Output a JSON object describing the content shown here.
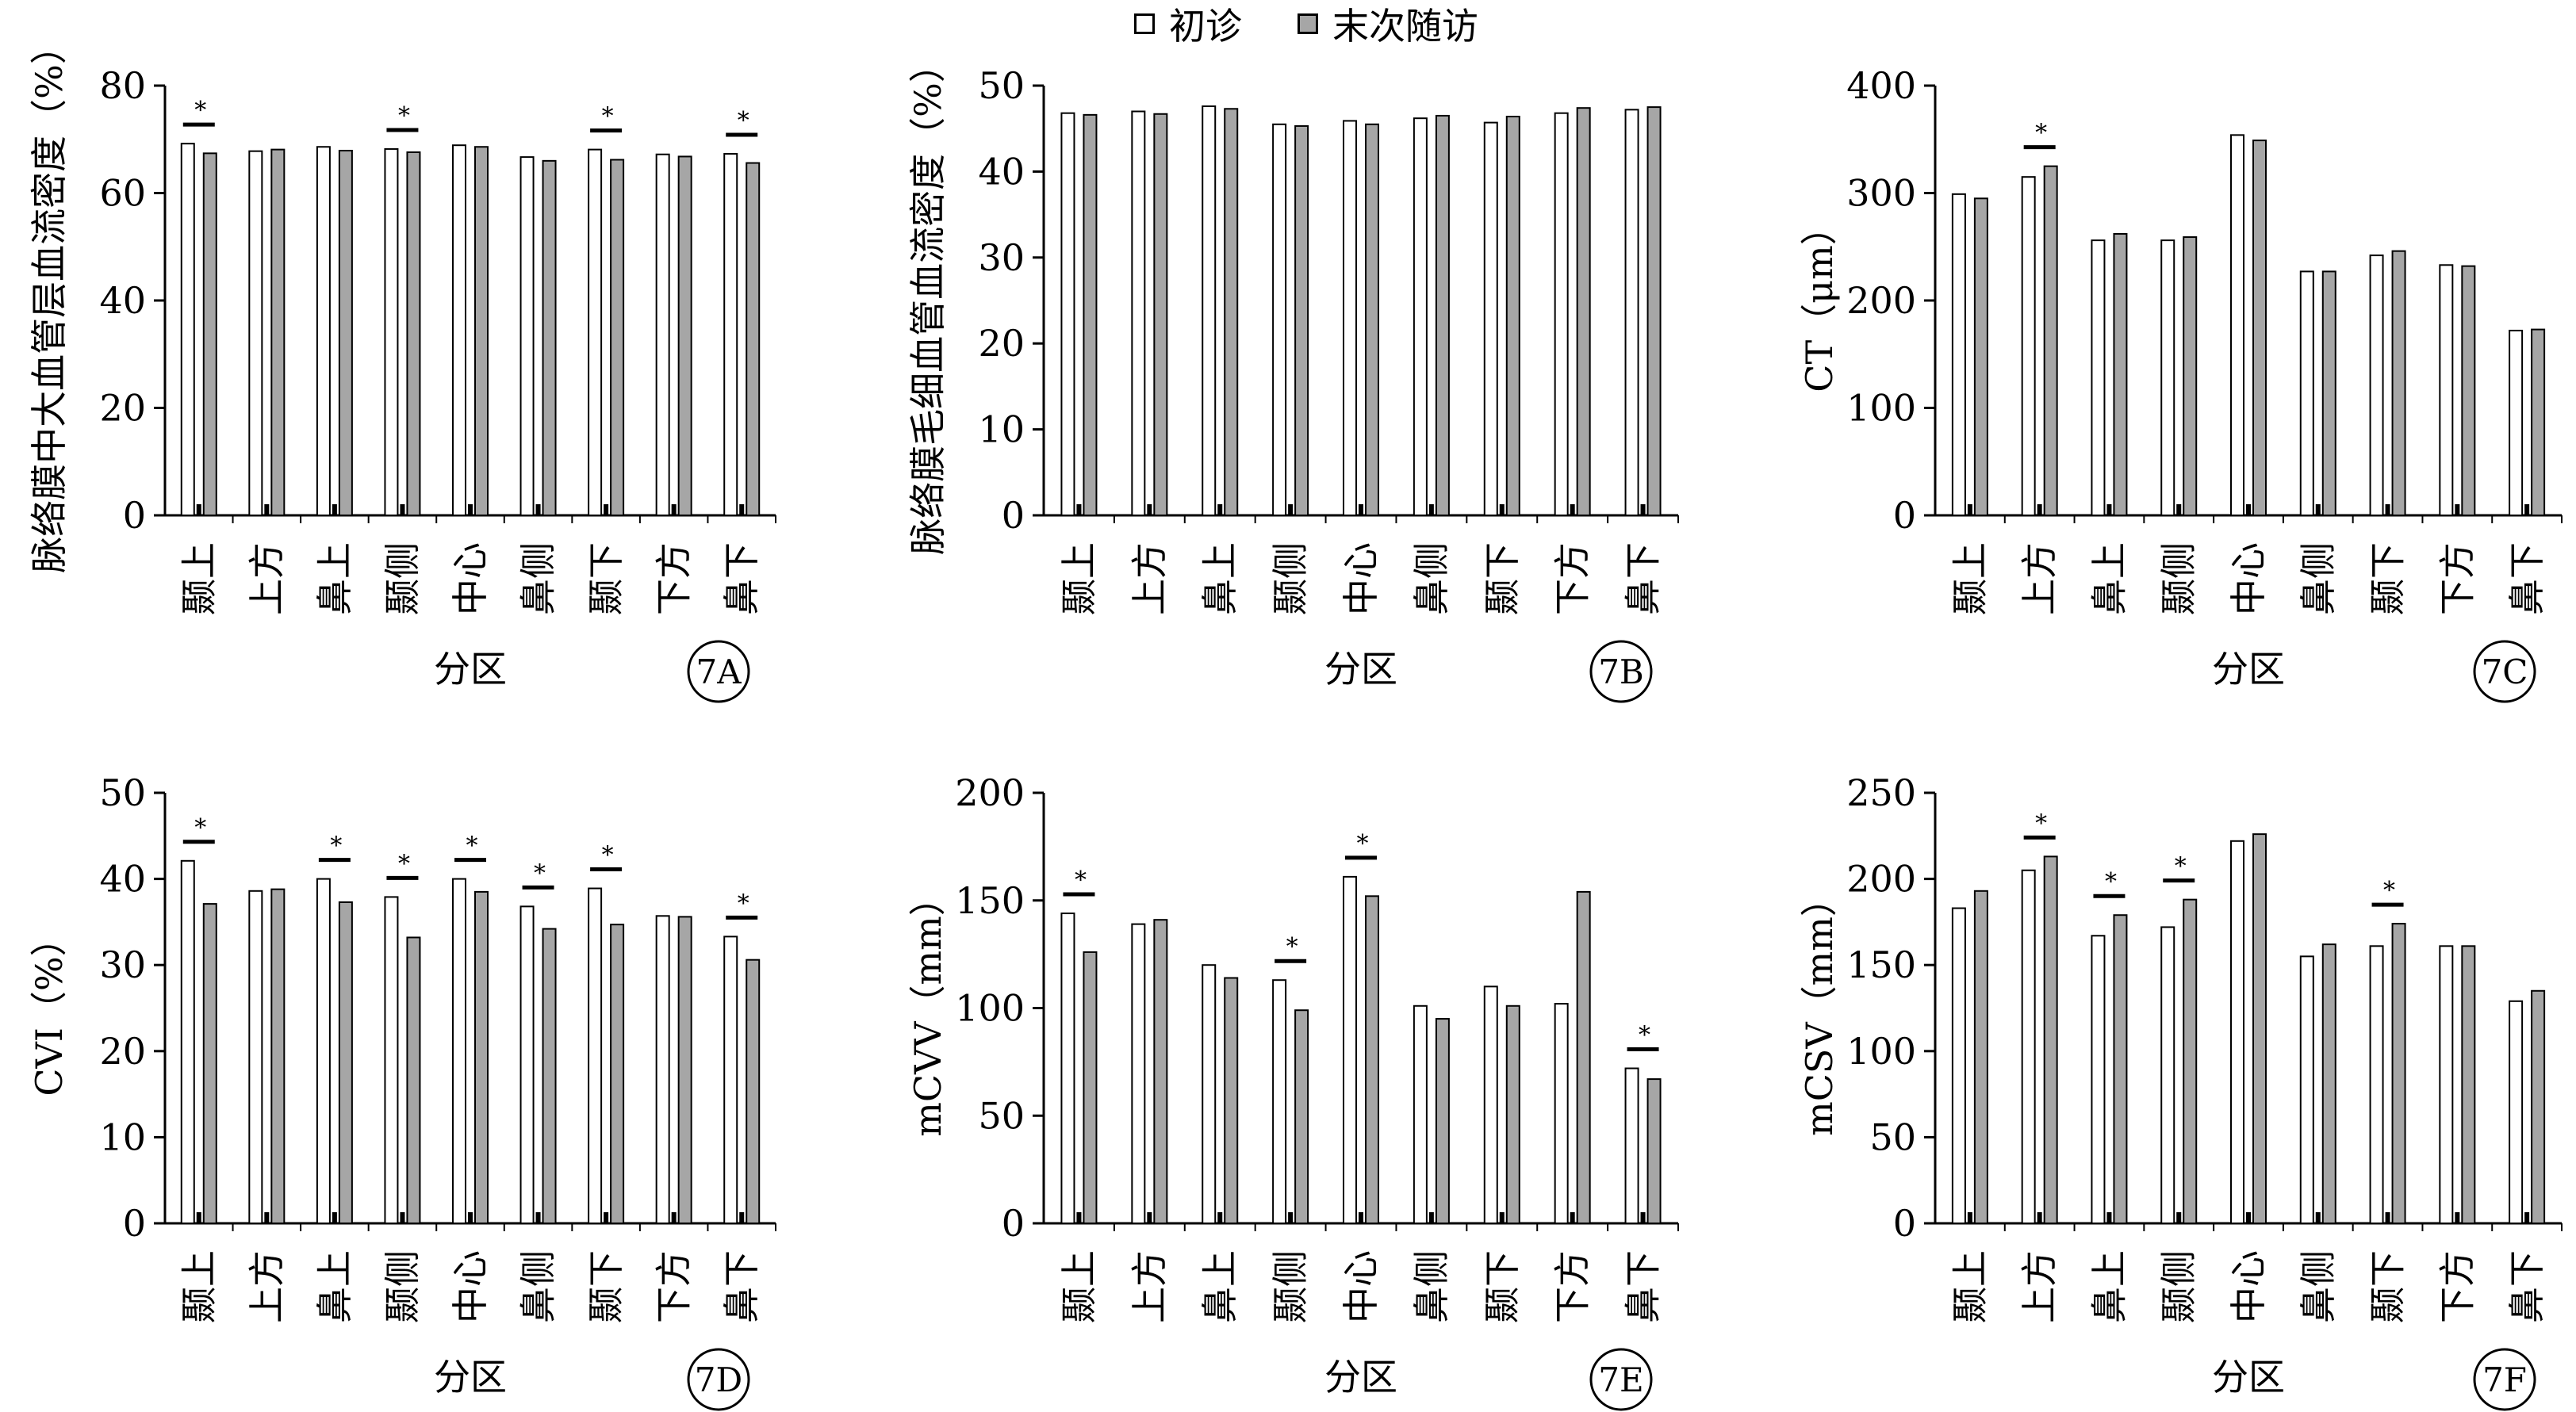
{
  "legend": {
    "series_names": [
      "初诊",
      "末次随访"
    ],
    "colors": [
      "#ffffff",
      "#a6a6a6"
    ]
  },
  "chart_data": [
    {
      "type": "bar",
      "panel_label": "7A",
      "ylabel": "脉络膜中大血管层血流密度（%）",
      "xlabel": "分区",
      "categories": [
        "颞上",
        "上方",
        "鼻上",
        "颞侧",
        "中心",
        "鼻侧",
        "颞下",
        "下方",
        "鼻下"
      ],
      "ylim": [
        0,
        80
      ],
      "yticks": [
        0,
        20,
        40,
        60,
        80
      ],
      "series": [
        {
          "name": "初诊",
          "values": [
            69.2,
            67.8,
            68.6,
            68.2,
            68.9,
            66.7,
            68.1,
            67.2,
            67.3
          ]
        },
        {
          "name": "末次随访",
          "values": [
            67.4,
            68.1,
            67.9,
            67.6,
            68.6,
            66.0,
            66.2,
            66.8,
            65.6
          ]
        }
      ],
      "significance": [
        "*",
        "",
        "",
        "*",
        "",
        "",
        "*",
        "",
        "*"
      ]
    },
    {
      "type": "bar",
      "panel_label": "7B",
      "ylabel": "脉络膜毛细血管血流密度（%）",
      "xlabel": "分区",
      "categories": [
        "颞上",
        "上方",
        "鼻上",
        "颞侧",
        "中心",
        "鼻侧",
        "颞下",
        "下方",
        "鼻下"
      ],
      "ylim": [
        0,
        50
      ],
      "yticks": [
        0,
        10,
        20,
        30,
        40,
        50
      ],
      "series": [
        {
          "name": "初诊",
          "values": [
            46.8,
            47.0,
            47.6,
            45.5,
            45.9,
            46.2,
            45.7,
            46.8,
            47.2
          ]
        },
        {
          "name": "末次随访",
          "values": [
            46.6,
            46.7,
            47.3,
            45.3,
            45.5,
            46.5,
            46.4,
            47.4,
            47.5
          ]
        }
      ],
      "significance": [
        "",
        "",
        "",
        "",
        "",
        "",
        "",
        "",
        ""
      ]
    },
    {
      "type": "bar",
      "panel_label": "7C",
      "ylabel": "CT（μm）",
      "xlabel": "分区",
      "categories": [
        "颞上",
        "上方",
        "鼻上",
        "颞侧",
        "中心",
        "鼻侧",
        "颞下",
        "下方",
        "鼻下"
      ],
      "ylim": [
        0,
        400
      ],
      "yticks": [
        0,
        100,
        200,
        300,
        400
      ],
      "series": [
        {
          "name": "初诊",
          "values": [
            299,
            315,
            256,
            256,
            354,
            227,
            242,
            233,
            172
          ]
        },
        {
          "name": "末次随访",
          "values": [
            295,
            325,
            262,
            259,
            349,
            227,
            246,
            232,
            173
          ]
        }
      ],
      "significance": [
        "",
        "*",
        "",
        "",
        "",
        "",
        "",
        "",
        ""
      ]
    },
    {
      "type": "bar",
      "panel_label": "7D",
      "ylabel": "CVI（%）",
      "xlabel": "分区",
      "categories": [
        "颞上",
        "上方",
        "鼻上",
        "颞侧",
        "中心",
        "鼻侧",
        "颞下",
        "下方",
        "鼻下"
      ],
      "ylim": [
        0,
        50
      ],
      "yticks": [
        0,
        10,
        20,
        30,
        40,
        50
      ],
      "series": [
        {
          "name": "初诊",
          "values": [
            42.1,
            38.6,
            40.0,
            37.9,
            40.0,
            36.8,
            38.9,
            35.7,
            33.3
          ]
        },
        {
          "name": "末次随访",
          "values": [
            37.1,
            38.8,
            37.3,
            33.2,
            38.5,
            34.2,
            34.7,
            35.6,
            30.6
          ]
        }
      ],
      "significance": [
        "*",
        "",
        "*",
        "*",
        "*",
        "*",
        "*",
        "",
        "*"
      ]
    },
    {
      "type": "bar",
      "panel_label": "7E",
      "ylabel": "mCVV（mm）",
      "xlabel": "分区",
      "categories": [
        "颞上",
        "上方",
        "鼻上",
        "颞侧",
        "中心",
        "鼻侧",
        "颞下",
        "下方",
        "鼻下"
      ],
      "ylim": [
        0,
        200
      ],
      "yticks": [
        0,
        50,
        100,
        150,
        200
      ],
      "series": [
        {
          "name": "初诊",
          "values": [
            144,
            139,
            120,
            113,
            161,
            101,
            110,
            102,
            72
          ]
        },
        {
          "name": "末次随访",
          "values": [
            126,
            141,
            114,
            99,
            152,
            95,
            101,
            154,
            67
          ]
        }
      ],
      "significance": [
        "*",
        "",
        "",
        "*",
        "*",
        "",
        "",
        "",
        "*"
      ]
    },
    {
      "type": "bar",
      "panel_label": "7F",
      "ylabel": "mCSV（mm）",
      "xlabel": "分区",
      "categories": [
        "颞上",
        "上方",
        "鼻上",
        "颞侧",
        "中心",
        "鼻侧",
        "颞下",
        "下方",
        "鼻下"
      ],
      "ylim": [
        0,
        250
      ],
      "yticks": [
        0,
        50,
        100,
        150,
        200,
        250
      ],
      "series": [
        {
          "name": "初诊",
          "values": [
            183,
            205,
            167,
            172,
            222,
            155,
            161,
            161,
            129
          ]
        },
        {
          "name": "末次随访",
          "values": [
            193,
            213,
            179,
            188,
            226,
            162,
            174,
            161,
            135
          ]
        }
      ],
      "significance": [
        "",
        "*",
        "*",
        "*",
        "",
        "",
        "*",
        "",
        ""
      ]
    }
  ]
}
